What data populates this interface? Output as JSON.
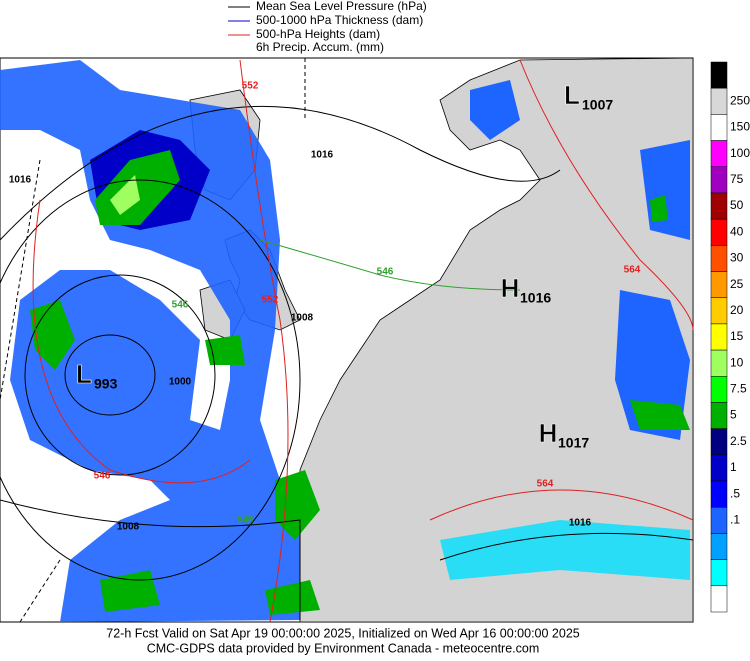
{
  "legend": [
    "Mean Sea Level Pressure (hPa)",
    "500-1000 hPa Thickness (dam)",
    "500-hPa Heights (dam)",
    "6h Precip. Accum. (mm)"
  ],
  "colorbar": {
    "labels": [
      "250",
      "150",
      "100",
      "75",
      "50",
      "40",
      "30",
      "25",
      "20",
      "15",
      "10",
      "7.5",
      "5",
      "2.5",
      "1",
      ".5",
      ".1"
    ],
    "colors": [
      "#000000",
      "#d8d8d8",
      "#ffffff",
      "#ff00ff",
      "#a000c0",
      "#a00000",
      "#ff0000",
      "#ff5000",
      "#ff9900",
      "#ffcc00",
      "#ffff00",
      "#a0ff60",
      "#00ff00",
      "#00b000",
      "#000080",
      "#0000c8",
      "#0000ff",
      "#1e64ff",
      "#00a0ff",
      "#00ffff",
      "#ffffff"
    ]
  },
  "centers": [
    {
      "letter": "L",
      "value": 1007
    },
    {
      "letter": "H",
      "value": 1016
    },
    {
      "letter": "L",
      "value": 993
    },
    {
      "letter": "H",
      "value": 1017
    }
  ],
  "contour_labels": [
    1016,
    1016,
    1008,
    1000,
    1008,
    1016,
    552,
    552,
    564,
    564,
    546,
    546,
    546,
    546
  ],
  "footer": [
    "72-h Fcst Valid on Sat Apr 19 00:00:00 2025, Initialized on Wed Apr 16 00:00:00 2025",
    "CMC-GDPS data provided by Environment Canada - meteocentre.com"
  ]
}
